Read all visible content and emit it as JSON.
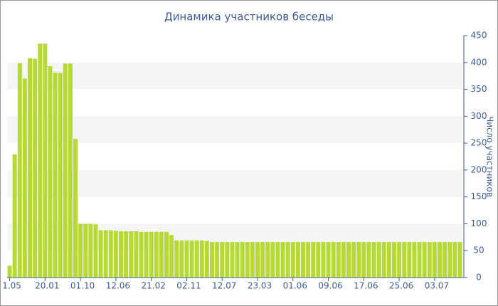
{
  "chart_data": {
    "type": "bar",
    "title": "Динамика участников беседы",
    "y_label": "Число участников",
    "categories": [
      "1.05",
      null,
      null,
      null,
      null,
      null,
      null,
      "20.01",
      null,
      null,
      null,
      null,
      null,
      null,
      "01.10",
      null,
      null,
      null,
      null,
      null,
      null,
      "12.06",
      null,
      null,
      null,
      null,
      null,
      null,
      "21.02",
      null,
      null,
      null,
      null,
      null,
      null,
      "02.11",
      null,
      null,
      null,
      null,
      null,
      null,
      "12.07",
      null,
      null,
      null,
      null,
      null,
      null,
      "23.03",
      null,
      null,
      null,
      null,
      null,
      null,
      "01.06",
      null,
      null,
      null,
      null,
      null,
      null,
      "09.06",
      null,
      null,
      null,
      null,
      null,
      null,
      "17.06",
      null,
      null,
      null,
      null,
      null,
      null,
      "25.06",
      null,
      null,
      null,
      null,
      null,
      null,
      "03.07",
      null,
      null,
      null,
      null,
      null
    ],
    "values": [
      22,
      229,
      399,
      370,
      408,
      407,
      435,
      435,
      393,
      381,
      381,
      398,
      398,
      258,
      100,
      100,
      100,
      99,
      88,
      88,
      88,
      87,
      86,
      86,
      86,
      86,
      85,
      85,
      85,
      85,
      85,
      85,
      79,
      69,
      69,
      69,
      69,
      69,
      69,
      68,
      66,
      66,
      66,
      66,
      66,
      66,
      66,
      66,
      66,
      66,
      66,
      66,
      66,
      66,
      66,
      66,
      66,
      66,
      66,
      66,
      66,
      66,
      66,
      66,
      66,
      66,
      66,
      66,
      66,
      66,
      66,
      66,
      66,
      66,
      66,
      66,
      66,
      66,
      66,
      66,
      66,
      66,
      66,
      66,
      66,
      66,
      66,
      66,
      66,
      66
    ],
    "color": "#b6d935",
    "ylim": [
      0,
      450
    ],
    "yticks": [
      0,
      50,
      100,
      150,
      200,
      250,
      300,
      350,
      400,
      450
    ],
    "grid": true
  }
}
